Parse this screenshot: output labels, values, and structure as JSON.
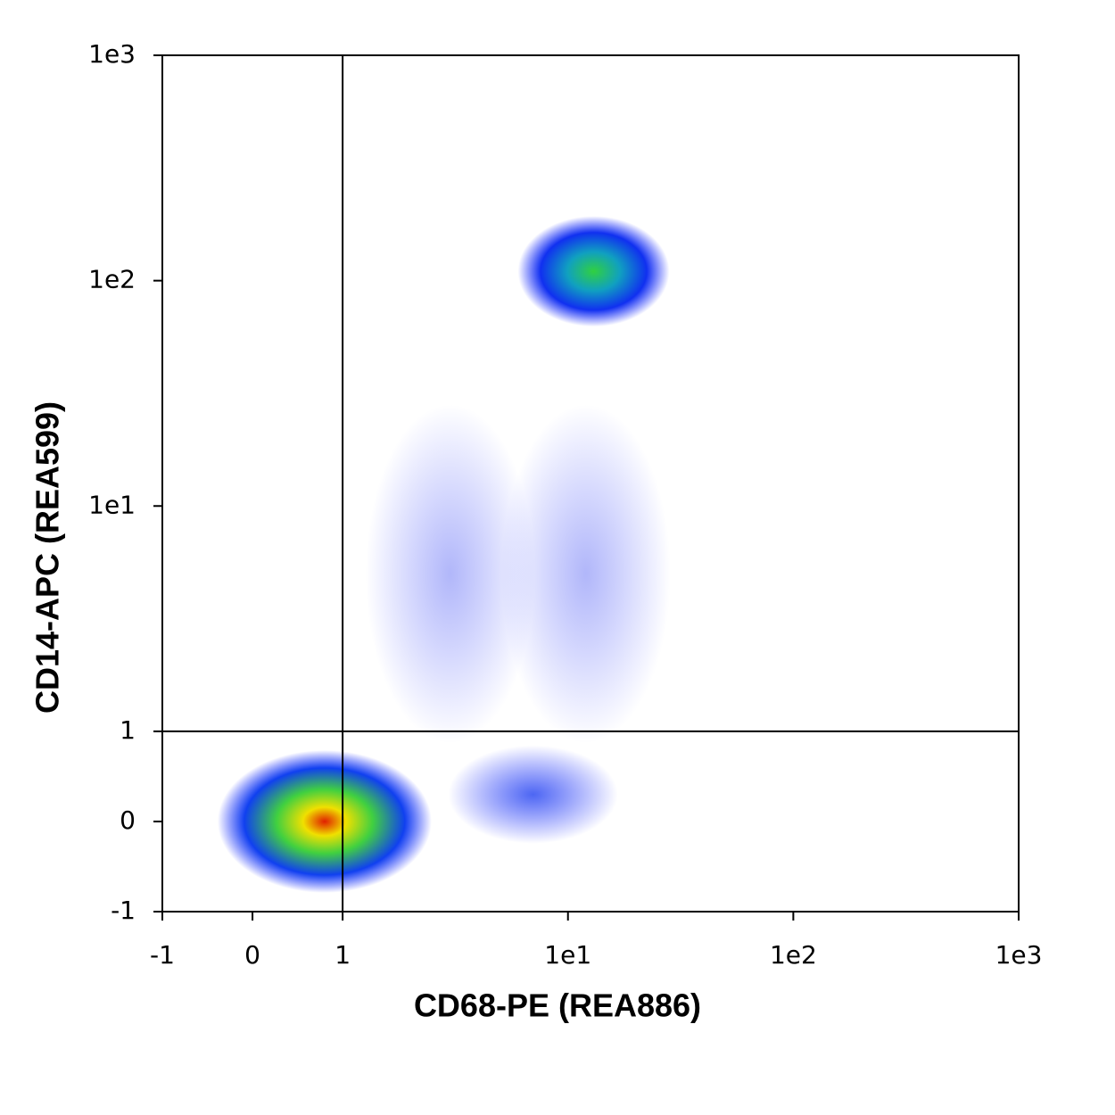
{
  "chart_data": {
    "type": "density",
    "x_label": "CD68-PE (REA886)",
    "y_label": "CD14-APC (REA599)",
    "xscale": "biexponential",
    "yscale": "biexponential",
    "xlim": [
      -1,
      1000
    ],
    "ylim": [
      -1,
      1000
    ],
    "xticks": [
      -1,
      0,
      1,
      {
        "value": 10,
        "label": "1e1"
      },
      {
        "value": 100,
        "label": "1e2"
      },
      {
        "value": 1000,
        "label": "1e3"
      }
    ],
    "yticks": [
      -1,
      0,
      1,
      {
        "value": 10,
        "label": "1e1"
      },
      {
        "value": 100,
        "label": "1e2"
      },
      {
        "value": 1000,
        "label": "1e3"
      }
    ],
    "gates": {
      "x": 1,
      "y": 1
    },
    "populations": [
      {
        "x": 0.8,
        "y": 0,
        "peak": "high"
      },
      {
        "x": 13,
        "y": 110,
        "peak": "mid"
      },
      {
        "x": 7,
        "y": 0.3,
        "peak": "low"
      },
      {
        "x": 3,
        "y": 5,
        "peak": "sparse"
      },
      {
        "x": 12,
        "y": 5,
        "peak": "sparse"
      }
    ]
  }
}
